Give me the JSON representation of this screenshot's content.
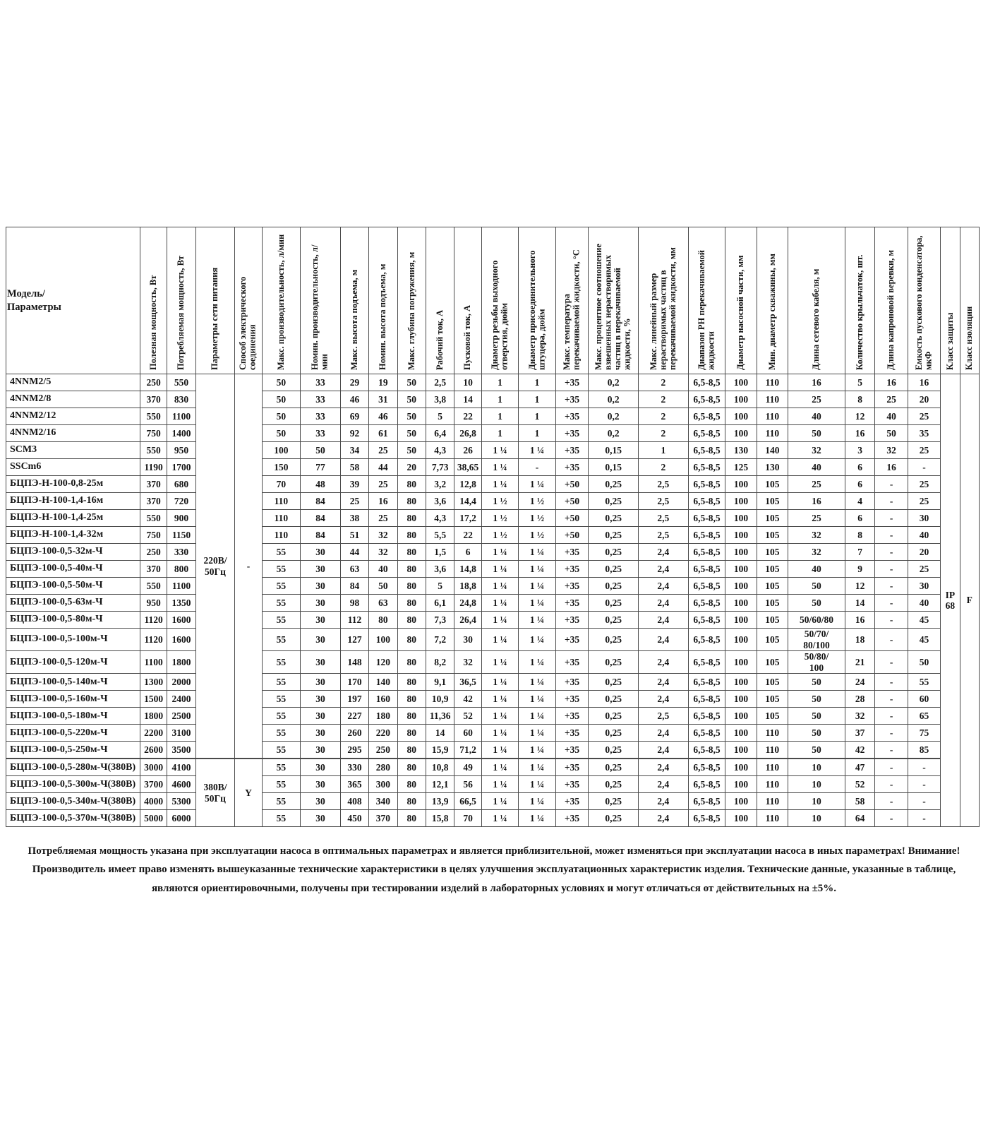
{
  "table": {
    "corner_label": "Модель/\nПараметры",
    "columns": [
      "Полезная мощность, Вт",
      "Потребляемая мощность, Вт",
      "Параметры сети питания",
      "Способ электрического соединения",
      "Макс. производительность, л/мин",
      "Номин. производительность, л/мин",
      "Макс. высота подъема, м",
      "Номин. высота подъема, м",
      "Макс. глубина погружения, м",
      "Рабочий ток, А",
      "Пусковой ток, А",
      "Диаметр резьбы выходного отверстия, дюйм",
      "Диаметр присоединительного штуцера, дюйм",
      "Макс.  температура перекачиваемой жидкости, °С",
      "Макс. процентное соотношение взвешенных нерастворимых частиц в перекачиваемой жидкости, %",
      "Макс. линейный размер нерастворимых частиц в перекачиваемой жидкости, мм",
      "Диапазон PH перекачиваемой жидкости",
      "Диаметр насосной части, мм",
      "Мин. диаметр скважины, мм",
      "Длина сетевого кабеля, м",
      "Количество крыльчаток, шт.",
      "Длина капроновой веревки, м",
      "Емкость пускового конденсатора, мкФ",
      "Класс защиты",
      "Класс изоляции"
    ],
    "groups": {
      "mains": [
        {
          "label": "220В/\n50Гц",
          "start": 0,
          "count": 22
        },
        {
          "label": "380В/\n50Гц",
          "start": 22,
          "count": 4
        }
      ],
      "connection": [
        {
          "label": "-",
          "start": 0,
          "count": 22
        },
        {
          "label": "Y",
          "start": 22,
          "count": 4
        }
      ],
      "protection": [
        {
          "label": "IP\n68",
          "start": 0,
          "count": 26
        }
      ],
      "insulation": [
        {
          "label": "F",
          "start": 0,
          "count": 26
        }
      ]
    },
    "rows": [
      {
        "model": "4NNM2/5",
        "cells": [
          "250",
          "550",
          "50",
          "33",
          "29",
          "19",
          "50",
          "2,5",
          "10",
          "1",
          "1",
          "+35",
          "0,2",
          "2",
          "6,5-8,5",
          "100",
          "110",
          "16",
          "5",
          "16",
          "16"
        ]
      },
      {
        "model": "4NNM2/8",
        "cells": [
          "370",
          "830",
          "50",
          "33",
          "46",
          "31",
          "50",
          "3,8",
          "14",
          "1",
          "1",
          "+35",
          "0,2",
          "2",
          "6,5-8,5",
          "100",
          "110",
          "25",
          "8",
          "25",
          "20"
        ]
      },
      {
        "model": "4NNM2/12",
        "cells": [
          "550",
          "1100",
          "50",
          "33",
          "69",
          "46",
          "50",
          "5",
          "22",
          "1",
          "1",
          "+35",
          "0,2",
          "2",
          "6,5-8,5",
          "100",
          "110",
          "40",
          "12",
          "40",
          "25"
        ]
      },
      {
        "model": "4NNM2/16",
        "cells": [
          "750",
          "1400",
          "50",
          "33",
          "92",
          "61",
          "50",
          "6,4",
          "26,8",
          "1",
          "1",
          "+35",
          "0,2",
          "2",
          "6,5-8,5",
          "100",
          "110",
          "50",
          "16",
          "50",
          "35"
        ]
      },
      {
        "model": "SCM3",
        "cells": [
          "550",
          "950",
          "100",
          "50",
          "34",
          "25",
          "50",
          "4,3",
          "26",
          "1 ¼",
          "1 ¼",
          "+35",
          "0,15",
          "1",
          "6,5-8,5",
          "130",
          "140",
          "32",
          "3",
          "32",
          "25"
        ]
      },
      {
        "model": "SSCm6",
        "cells": [
          "1190",
          "1700",
          "150",
          "77",
          "58",
          "44",
          "20",
          "7,73",
          "38,65",
          "1 ¼",
          "-",
          "+35",
          "0,15",
          "2",
          "6,5-8,5",
          "125",
          "130",
          "40",
          "6",
          "16",
          "-"
        ]
      },
      {
        "model": "БЦПЭ-Н-100-0,8-25м",
        "cells": [
          "370",
          "680",
          "70",
          "48",
          "39",
          "25",
          "80",
          "3,2",
          "12,8",
          "1 ¼",
          "1 ¼",
          "+50",
          "0,25",
          "2,5",
          "6,5-8,5",
          "100",
          "105",
          "25",
          "6",
          "-",
          "25"
        ]
      },
      {
        "model": "БЦПЭ-Н-100-1,4-16м",
        "cells": [
          "370",
          "720",
          "110",
          "84",
          "25",
          "16",
          "80",
          "3,6",
          "14,4",
          "1 ½",
          "1 ½",
          "+50",
          "0,25",
          "2,5",
          "6,5-8,5",
          "100",
          "105",
          "16",
          "4",
          "-",
          "25"
        ]
      },
      {
        "model": "БЦПЭ-Н-100-1,4-25м",
        "cells": [
          "550",
          "900",
          "110",
          "84",
          "38",
          "25",
          "80",
          "4,3",
          "17,2",
          "1 ½",
          "1 ½",
          "+50",
          "0,25",
          "2,5",
          "6,5-8,5",
          "100",
          "105",
          "25",
          "6",
          "-",
          "30"
        ]
      },
      {
        "model": "БЦПЭ-Н-100-1,4-32м",
        "cells": [
          "750",
          "1150",
          "110",
          "84",
          "51",
          "32",
          "80",
          "5,5",
          "22",
          "1 ½",
          "1 ½",
          "+50",
          "0,25",
          "2,5",
          "6,5-8,5",
          "100",
          "105",
          "32",
          "8",
          "-",
          "40"
        ]
      },
      {
        "model": "БЦПЭ-100-0,5-32м-Ч",
        "cells": [
          "250",
          "330",
          "55",
          "30",
          "44",
          "32",
          "80",
          "1,5",
          "6",
          "1 ¼",
          "1 ¼",
          "+35",
          "0,25",
          "2,4",
          "6,5-8,5",
          "100",
          "105",
          "32",
          "7",
          "-",
          "20"
        ]
      },
      {
        "model": "БЦПЭ-100-0,5-40м-Ч",
        "cells": [
          "370",
          "800",
          "55",
          "30",
          "63",
          "40",
          "80",
          "3,6",
          "14,8",
          "1 ¼",
          "1 ¼",
          "+35",
          "0,25",
          "2,4",
          "6,5-8,5",
          "100",
          "105",
          "40",
          "9",
          "-",
          "25"
        ]
      },
      {
        "model": "БЦПЭ-100-0,5-50м-Ч",
        "cells": [
          "550",
          "1100",
          "55",
          "30",
          "84",
          "50",
          "80",
          "5",
          "18,8",
          "1 ¼",
          "1 ¼",
          "+35",
          "0,25",
          "2,4",
          "6,5-8,5",
          "100",
          "105",
          "50",
          "12",
          "-",
          "30"
        ]
      },
      {
        "model": "БЦПЭ-100-0,5-63м-Ч",
        "cells": [
          "950",
          "1350",
          "55",
          "30",
          "98",
          "63",
          "80",
          "6,1",
          "24,8",
          "1 ¼",
          "1 ¼",
          "+35",
          "0,25",
          "2,4",
          "6,5-8,5",
          "100",
          "105",
          "50",
          "14",
          "-",
          "40"
        ]
      },
      {
        "model": "БЦПЭ-100-0,5-80м-Ч",
        "cells": [
          "1120",
          "1600",
          "55",
          "30",
          "112",
          "80",
          "80",
          "7,3",
          "26,4",
          "1 ¼",
          "1 ¼",
          "+35",
          "0,25",
          "2,4",
          "6,5-8,5",
          "100",
          "105",
          "50/60/80",
          "16",
          "-",
          "45"
        ]
      },
      {
        "model": "БЦПЭ-100-0,5-100м-Ч",
        "cells": [
          "1120",
          "1600",
          "55",
          "30",
          "127",
          "100",
          "80",
          "7,2",
          "30",
          "1 ¼",
          "1 ¼",
          "+35",
          "0,25",
          "2,4",
          "6,5-8,5",
          "100",
          "105",
          "50/70/\n80/100",
          "18",
          "-",
          "45"
        ]
      },
      {
        "model": "БЦПЭ-100-0,5-120м-Ч",
        "cells": [
          "1100",
          "1800",
          "55",
          "30",
          "148",
          "120",
          "80",
          "8,2",
          "32",
          "1 ¼",
          "1 ¼",
          "+35",
          "0,25",
          "2,4",
          "6,5-8,5",
          "100",
          "105",
          "50/80/\n100",
          "21",
          "-",
          "50"
        ]
      },
      {
        "model": "БЦПЭ-100-0,5-140м-Ч",
        "cells": [
          "1300",
          "2000",
          "55",
          "30",
          "170",
          "140",
          "80",
          "9,1",
          "36,5",
          "1 ¼",
          "1 ¼",
          "+35",
          "0,25",
          "2,4",
          "6,5-8,5",
          "100",
          "105",
          "50",
          "24",
          "-",
          "55"
        ]
      },
      {
        "model": "БЦПЭ-100-0,5-160м-Ч",
        "cells": [
          "1500",
          "2400",
          "55",
          "30",
          "197",
          "160",
          "80",
          "10,9",
          "42",
          "1 ¼",
          "1 ¼",
          "+35",
          "0,25",
          "2,4",
          "6,5-8,5",
          "100",
          "105",
          "50",
          "28",
          "-",
          "60"
        ]
      },
      {
        "model": "БЦПЭ-100-0,5-180м-Ч",
        "cells": [
          "1800",
          "2500",
          "55",
          "30",
          "227",
          "180",
          "80",
          "11,36",
          "52",
          "1 ¼",
          "1 ¼",
          "+35",
          "0,25",
          "2,5",
          "6,5-8,5",
          "100",
          "105",
          "50",
          "32",
          "-",
          "65"
        ]
      },
      {
        "model": "БЦПЭ-100-0,5-220м-Ч",
        "cells": [
          "2200",
          "3100",
          "55",
          "30",
          "260",
          "220",
          "80",
          "14",
          "60",
          "1 ¼",
          "1 ¼",
          "+35",
          "0,25",
          "2,4",
          "6,5-8,5",
          "100",
          "110",
          "50",
          "37",
          "-",
          "75"
        ]
      },
      {
        "model": "БЦПЭ-100-0,5-250м-Ч",
        "cells": [
          "2600",
          "3500",
          "55",
          "30",
          "295",
          "250",
          "80",
          "15,9",
          "71,2",
          "1 ¼",
          "1 ¼",
          "+35",
          "0,25",
          "2,4",
          "6,5-8,5",
          "100",
          "110",
          "50",
          "42",
          "-",
          "85"
        ]
      },
      {
        "model": "БЦПЭ-100-0,5-280м-Ч(380В)",
        "cells": [
          "3000",
          "4100",
          "55",
          "30",
          "330",
          "280",
          "80",
          "10,8",
          "49",
          "1 ¼",
          "1 ¼",
          "+35",
          "0,25",
          "2,4",
          "6,5-8,5",
          "100",
          "110",
          "10",
          "47",
          "-",
          "-"
        ]
      },
      {
        "model": "БЦПЭ-100-0,5-300м-Ч(380В)",
        "cells": [
          "3700",
          "4600",
          "55",
          "30",
          "365",
          "300",
          "80",
          "12,1",
          "56",
          "1 ¼",
          "1 ¼",
          "+35",
          "0,25",
          "2,4",
          "6,5-8,5",
          "100",
          "110",
          "10",
          "52",
          "-",
          "-"
        ]
      },
      {
        "model": "БЦПЭ-100-0,5-340м-Ч(380В)",
        "cells": [
          "4000",
          "5300",
          "55",
          "30",
          "408",
          "340",
          "80",
          "13,9",
          "66,5",
          "1 ¼",
          "1 ¼",
          "+35",
          "0,25",
          "2,4",
          "6,5-8,5",
          "100",
          "110",
          "10",
          "58",
          "-",
          "-"
        ]
      },
      {
        "model": "БЦПЭ-100-0,5-370м-Ч(380В)",
        "cells": [
          "5000",
          "6000",
          "55",
          "30",
          "450",
          "370",
          "80",
          "15,8",
          "70",
          "1 ¼",
          "1 ¼",
          "+35",
          "0,25",
          "2,4",
          "6,5-8,5",
          "100",
          "110",
          "10",
          "64",
          "-",
          "-"
        ]
      }
    ]
  },
  "footnote": "Потребляемая мощность указана при эксплуатации насоса в оптимальных параметрах и является приблизительной, может изменяться при эксплуатации насоса в иных параметрах! Внимание! Производитель имеет право изменять вышеуказанные технические характеристики в целях улучшения эксплуатационных характеристик изделия.  Технические данные, указанные в таблице, являются ориентировочными, получены при тестировании изделий в лабораторных условиях и  могут отличаться от действительных на ±5%."
}
